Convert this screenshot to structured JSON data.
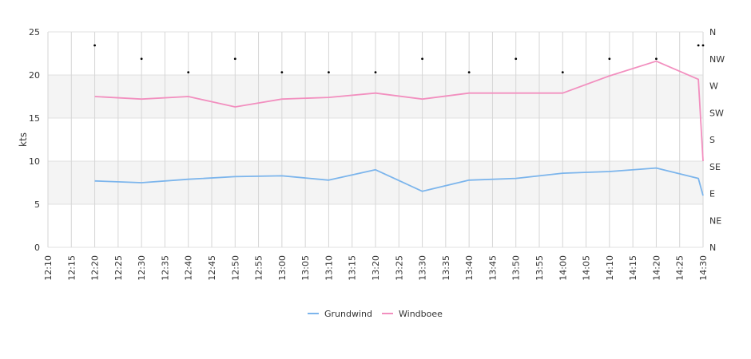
{
  "chart_data": {
    "type": "line",
    "ylabel": "kts",
    "ylim": [
      0,
      25
    ],
    "y_ticks": [
      "0",
      "5",
      "10",
      "15",
      "20",
      "25"
    ],
    "x_tick_labels": [
      "12:10",
      "12:15",
      "12:20",
      "12:25",
      "12:30",
      "12:35",
      "12:40",
      "12:45",
      "12:50",
      "12:55",
      "13:00",
      "13:05",
      "13:10",
      "13:15",
      "13:20",
      "13:25",
      "13:30",
      "13:35",
      "13:40",
      "13:45",
      "13:50",
      "13:55",
      "14:00",
      "14:05",
      "14:10",
      "14:15",
      "14:20",
      "14:25",
      "14:30"
    ],
    "direction_ticks": [
      "N",
      "NE",
      "E",
      "SE",
      "S",
      "SW",
      "W",
      "NW",
      "N"
    ],
    "legend_position": "bottom-center",
    "grid": true,
    "series": [
      {
        "name": "Grundwind",
        "color": "#7cb5ec",
        "points": [
          [
            "12:20",
            7.7
          ],
          [
            "12:30",
            7.5
          ],
          [
            "12:40",
            7.9
          ],
          [
            "12:50",
            8.2
          ],
          [
            "13:00",
            8.3
          ],
          [
            "13:10",
            7.8
          ],
          [
            "13:20",
            9.0
          ],
          [
            "13:30",
            6.5
          ],
          [
            "13:40",
            7.8
          ],
          [
            "13:50",
            8.0
          ],
          [
            "14:00",
            8.6
          ],
          [
            "14:10",
            8.8
          ],
          [
            "14:20",
            9.2
          ],
          [
            "14:29",
            8.0
          ],
          [
            "14:30",
            6.0
          ]
        ]
      },
      {
        "name": "Windboee",
        "color": "#f28fbf",
        "points": [
          [
            "12:20",
            17.5
          ],
          [
            "12:30",
            17.2
          ],
          [
            "12:40",
            17.5
          ],
          [
            "12:50",
            16.3
          ],
          [
            "13:00",
            17.2
          ],
          [
            "13:10",
            17.4
          ],
          [
            "13:20",
            17.9
          ],
          [
            "13:30",
            17.2
          ],
          [
            "13:40",
            17.9
          ],
          [
            "13:50",
            17.9
          ],
          [
            "14:00",
            17.9
          ],
          [
            "14:10",
            19.9
          ],
          [
            "14:20",
            21.6
          ],
          [
            "14:29",
            19.5
          ],
          [
            "14:30",
            10.0
          ]
        ]
      }
    ],
    "direction_marks": [
      [
        "12:20",
        "NNW"
      ],
      [
        "12:30",
        "NW"
      ],
      [
        "12:40",
        "WNW"
      ],
      [
        "12:50",
        "NW"
      ],
      [
        "13:00",
        "WNW"
      ],
      [
        "13:10",
        "WNW"
      ],
      [
        "13:20",
        "WNW"
      ],
      [
        "13:30",
        "NW"
      ],
      [
        "13:40",
        "WNW"
      ],
      [
        "13:50",
        "NW"
      ],
      [
        "14:00",
        "WNW"
      ],
      [
        "14:10",
        "NW"
      ],
      [
        "14:20",
        "NW"
      ],
      [
        "14:29",
        "NNW"
      ],
      [
        "14:30",
        "NNW"
      ]
    ]
  }
}
